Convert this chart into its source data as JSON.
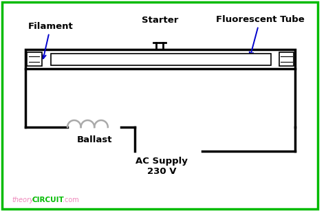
{
  "bg_color": "#ffffff",
  "border_color": "#00bb00",
  "line_color": "#000000",
  "coil_color": "#aaaaaa",
  "arrow_color": "#0000cc",
  "text_color": "#000000",
  "watermark_theory": "#ee88bb",
  "watermark_circuit": "#00bb00",
  "label_fluor": "Fluorescent Tube",
  "label_filament": "Filament",
  "label_starter": "Starter",
  "label_ballast": "Ballast",
  "label_ac": "AC Supply",
  "label_voltage": "230 V"
}
